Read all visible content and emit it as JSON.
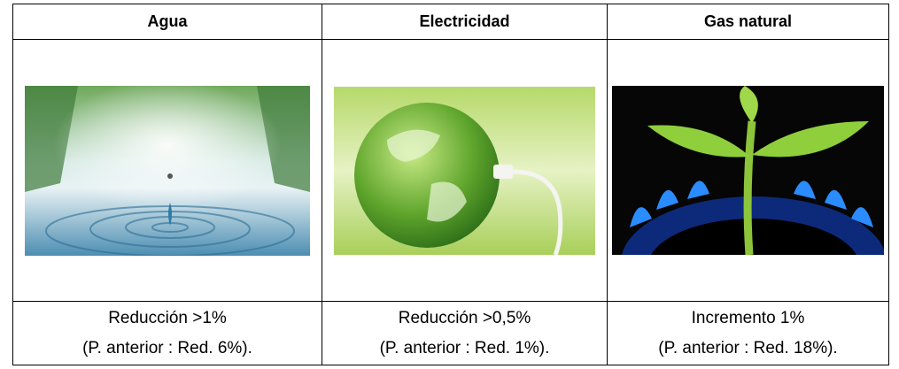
{
  "table": {
    "header": [
      "Agua",
      "Electricidad",
      "Gas natural"
    ],
    "footer": [
      [
        "Reducción >1%",
        "(P. anterior : Red. 6%)."
      ],
      [
        "Reducción >0,5%",
        "(P. anterior : Red. 1%)."
      ],
      [
        "Incremento 1%",
        "(P. anterior : Red. 18%)."
      ]
    ]
  }
}
